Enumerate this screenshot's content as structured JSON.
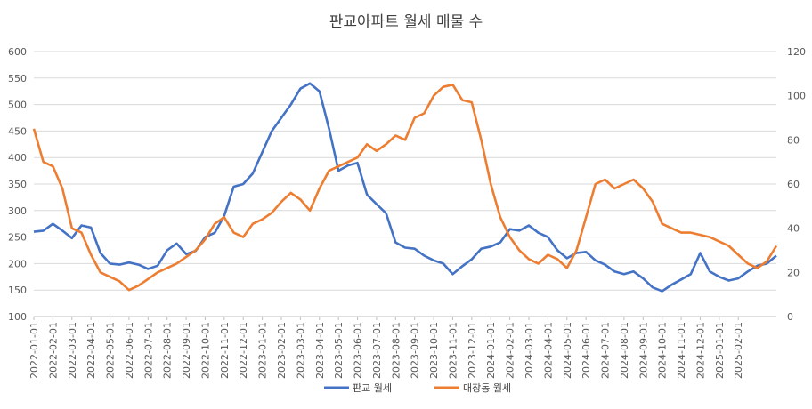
{
  "chart_data": {
    "type": "line",
    "title": "판교아파트 월세 매물 수",
    "grid": true,
    "legend_position": "bottom",
    "y_left": {
      "min": 100,
      "max": 600,
      "ticks": [
        100,
        150,
        200,
        250,
        300,
        350,
        400,
        450,
        500,
        550,
        600
      ]
    },
    "y_right": {
      "min": 0,
      "max": 120,
      "ticks": [
        0,
        20,
        40,
        60,
        80,
        100,
        120
      ]
    },
    "x_tick_labels": [
      "2022-01-01",
      "2022-02-01",
      "2022-03-01",
      "2022-04-01",
      "2022-05-01",
      "2022-06-01",
      "2022-07-01",
      "2022-08-01",
      "2022-09-01",
      "2022-10-01",
      "2022-11-01",
      "2022-12-01",
      "2023-01-01",
      "2023-02-01",
      "2023-03-01",
      "2023-04-01",
      "2023-05-01",
      "2023-06-01",
      "2023-07-01",
      "2023-08-01",
      "2023-09-01",
      "2023-10-01",
      "2023-11-01",
      "2023-12-01",
      "2024-01-01",
      "2024-02-01",
      "2024-03-01",
      "2024-04-01",
      "2024-05-01",
      "2024-06-01",
      "2024-07-01",
      "2024-08-01",
      "2024-09-01",
      "2024-10-01",
      "2024-11-01",
      "2024-12-01",
      "2025-01-01",
      "2025-02-01"
    ],
    "x_range_months": [
      0,
      39
    ],
    "series": [
      {
        "name": "판교 월세",
        "axis": "left",
        "color": "#4472C4",
        "x_months": [
          0,
          0.5,
          1,
          1.5,
          2,
          2.5,
          3,
          3.5,
          4,
          4.5,
          5,
          5.5,
          6,
          6.5,
          7,
          7.5,
          8,
          8.5,
          9,
          9.5,
          10,
          10.5,
          11,
          11.5,
          12,
          12.5,
          13,
          13.5,
          14,
          14.5,
          15,
          15.5,
          16,
          16.5,
          17,
          17.5,
          18,
          18.5,
          19,
          19.5,
          20,
          20.5,
          21,
          21.5,
          22,
          22.5,
          23,
          23.5,
          24,
          24.5,
          25,
          25.5,
          26,
          26.5,
          27,
          27.5,
          28,
          28.5,
          29,
          29.5,
          30,
          30.5,
          31,
          31.5,
          32,
          32.5,
          33,
          33.5,
          34,
          34.5,
          35,
          35.5,
          36,
          36.5,
          37,
          37.5,
          38,
          38.5,
          39
        ],
        "values": [
          260,
          262,
          275,
          262,
          248,
          272,
          268,
          220,
          200,
          198,
          202,
          198,
          190,
          196,
          225,
          238,
          218,
          224,
          250,
          258,
          290,
          345,
          350,
          370,
          410,
          450,
          475,
          500,
          530,
          540,
          525,
          455,
          375,
          385,
          390,
          330,
          312,
          295,
          240,
          230,
          228,
          215,
          206,
          200,
          180,
          195,
          208,
          228,
          232,
          240,
          265,
          262,
          272,
          258,
          250,
          225,
          210,
          220,
          222,
          206,
          198,
          185,
          180,
          185,
          172,
          155,
          148,
          160,
          170,
          180,
          220,
          185,
          175,
          168,
          172,
          185,
          196,
          200,
          215
        ]
      },
      {
        "name": "대장동 월세",
        "axis": "right",
        "color": "#ED7D31",
        "x_months": [
          0,
          0.5,
          1,
          1.5,
          2,
          2.5,
          3,
          3.5,
          4,
          4.5,
          5,
          5.5,
          6,
          6.5,
          7,
          7.5,
          8,
          8.5,
          9,
          9.5,
          10,
          10.5,
          11,
          11.5,
          12,
          12.5,
          13,
          13.5,
          14,
          14.5,
          15,
          15.5,
          16,
          16.5,
          17,
          17.5,
          18,
          18.5,
          19,
          19.5,
          20,
          20.5,
          21,
          21.5,
          22,
          22.5,
          23,
          23.5,
          24,
          24.5,
          25,
          25.5,
          26,
          26.5,
          27,
          27.5,
          28,
          28.5,
          29,
          29.5,
          30,
          30.5,
          31,
          31.5,
          32,
          32.5,
          33,
          33.5,
          34,
          34.5,
          35,
          35.5,
          36,
          36.5,
          37,
          37.5,
          38,
          38.5,
          39
        ],
        "values": [
          85,
          70,
          68,
          58,
          40,
          38,
          28,
          20,
          18,
          16,
          12,
          14,
          17,
          20,
          22,
          24,
          27,
          30,
          35,
          42,
          45,
          38,
          36,
          42,
          44,
          47,
          52,
          56,
          53,
          48,
          58,
          66,
          68,
          70,
          72,
          78,
          75,
          78,
          82,
          80,
          90,
          92,
          100,
          104,
          105,
          98,
          97,
          80,
          60,
          45,
          36,
          30,
          26,
          24,
          28,
          26,
          22,
          30,
          45,
          60,
          62,
          58,
          60,
          62,
          58,
          52,
          42,
          40,
          38,
          38,
          37,
          36,
          34,
          32,
          28,
          24,
          22,
          25,
          32
        ]
      }
    ]
  }
}
